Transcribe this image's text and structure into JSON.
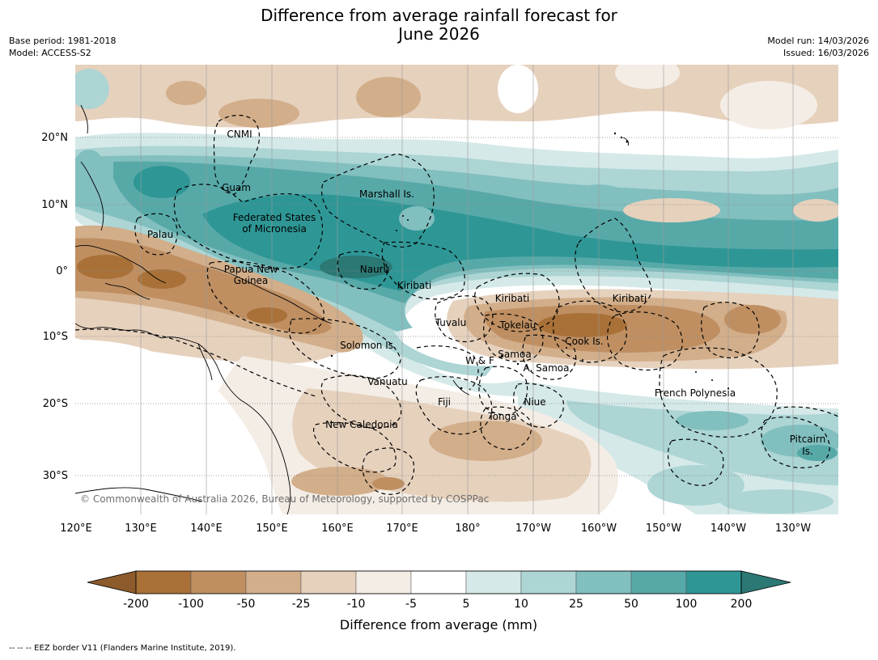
{
  "header": {
    "title_line1": "Difference from average rainfall forecast for",
    "title_line2": "June 2026",
    "base_period": "Base period: 1981-2018",
    "model": "Model: ACCESS-S2",
    "model_run": "Model run: 14/03/2026",
    "issued": "Issued: 16/03/2026"
  },
  "map": {
    "lon_labels": [
      "120°E",
      "130°E",
      "140°E",
      "150°E",
      "160°E",
      "170°E",
      "180°",
      "170°W",
      "160°W",
      "150°W",
      "140°W",
      "130°W"
    ],
    "lat_labels": [
      "20°N",
      "10°N",
      "0°",
      "10°S",
      "20°S",
      "30°S"
    ],
    "regions": [
      "CNMI",
      "Guam",
      "Marshall Is.",
      "Federated States",
      "of Micronesia",
      "Palau",
      "Papua New",
      "Guinea",
      "Nauru",
      "Kiribati",
      "Kiribati",
      "Kiribati",
      "Tuvalu",
      "Tokelau",
      "Solomon Is.",
      "Samoa",
      "W & F",
      "A. Samoa",
      "Cook Is.",
      "Vanuatu",
      "Fiji",
      "Niue",
      "Tonga",
      "French Polynesia",
      "New Caledonia",
      "Pitcairn",
      "Is."
    ],
    "copyright": "© Commonwealth of Australia 2026, Bureau of Meteorology, supported by COSPPac"
  },
  "legend": {
    "ticks": [
      "-200",
      "-100",
      "-50",
      "-25",
      "-10",
      "-5",
      "5",
      "10",
      "25",
      "50",
      "100",
      "200"
    ],
    "colors": [
      "#8d5a2b",
      "#a97138",
      "#bf8f62",
      "#d2ae8a",
      "#e6d1bd",
      "#f4ede5",
      "#ffffff",
      "#d5e9e8",
      "#acd5d4",
      "#82bfbf",
      "#57a9a8",
      "#2e9796",
      "#2b7874"
    ],
    "label": "Difference from average (mm)"
  },
  "footnote": "--  --  -- EEZ border V11 (Flanders Marine Institute, 2019)."
}
